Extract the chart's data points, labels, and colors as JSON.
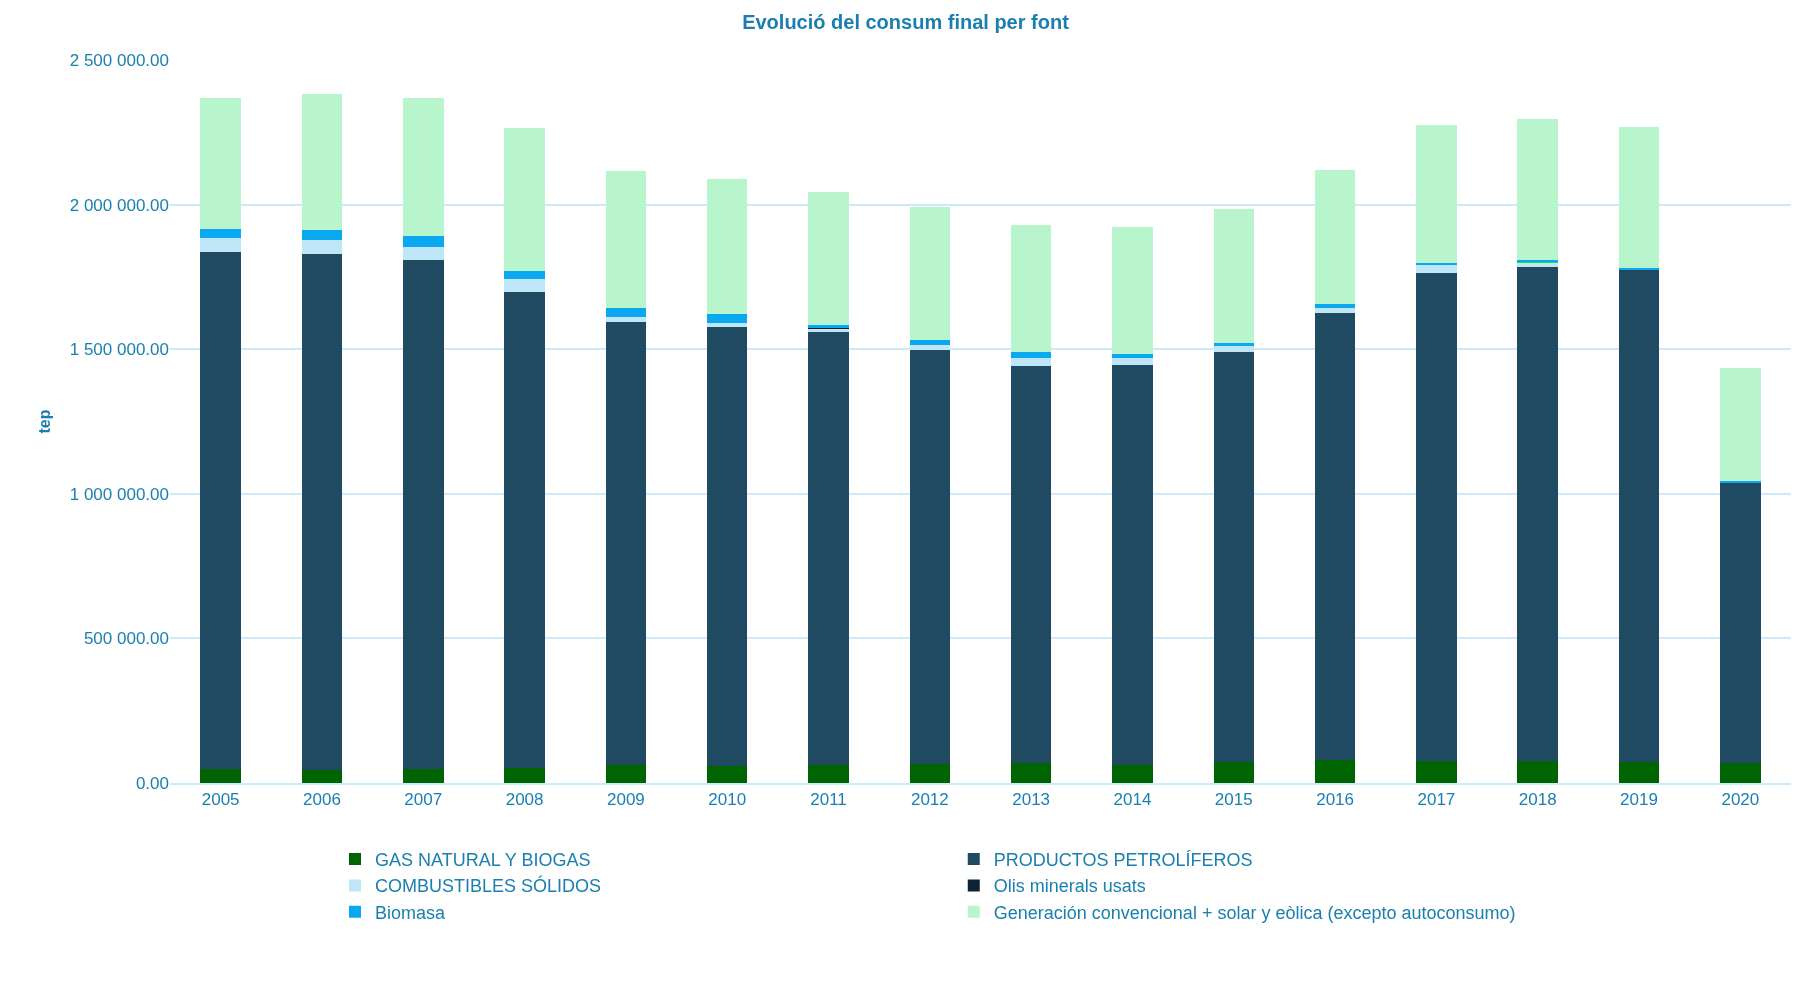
{
  "chart_data": {
    "type": "bar",
    "stacked": true,
    "title": "Evolució del consum final per font",
    "ylabel": "tep",
    "categories": [
      "2005",
      "2006",
      "2007",
      "2008",
      "2009",
      "2010",
      "2011",
      "2012",
      "2013",
      "2014",
      "2015",
      "2016",
      "2017",
      "2018",
      "2019",
      "2020"
    ],
    "series": [
      {
        "name": "GAS NATURAL Y BIOGAS",
        "color": "#006400",
        "values": [
          48000,
          44000,
          48000,
          52000,
          62000,
          59000,
          62000,
          66000,
          69000,
          62000,
          73000,
          81000,
          76000,
          76000,
          73000,
          69000
        ]
      },
      {
        "name": "PRODUCTOS PETROLÍFEROS",
        "color": "#1f4a62",
        "values": [
          1787000,
          1784000,
          1760000,
          1647000,
          1533000,
          1519000,
          1498000,
          1432000,
          1373000,
          1384000,
          1418000,
          1545000,
          1689000,
          1707000,
          1700000,
          968000
        ]
      },
      {
        "name": "COMBUSTIBLES SÓLIDOS",
        "color": "#bfe6f7",
        "values": [
          48000,
          48000,
          47000,
          43000,
          15000,
          11000,
          11000,
          18000,
          29000,
          25000,
          21000,
          18000,
          25000,
          17000,
          null,
          null
        ]
      },
      {
        "color": "#22dd44",
        "values": [
          null,
          null,
          null,
          null,
          null,
          null,
          null,
          null,
          null,
          null,
          null,
          null,
          null,
          4000,
          null,
          null
        ]
      },
      {
        "name": "Olis minerals usats",
        "color": "#0d2233",
        "values": [
          null,
          null,
          null,
          null,
          null,
          null,
          3000,
          null,
          null,
          null,
          null,
          null,
          null,
          null,
          null,
          null
        ]
      },
      {
        "name": "Biomasa",
        "color": "#0aa8f0",
        "values": [
          32000,
          36000,
          35000,
          30000,
          34000,
          34000,
          11000,
          16000,
          18000,
          13000,
          11000,
          14000,
          7000,
          6000,
          7000,
          7000
        ]
      },
      {
        "name": "Generación convencional + solar y eòlica (excepto autoconsumo)",
        "color": "#b8f5cc",
        "values": [
          455000,
          469000,
          477000,
          494000,
          472000,
          465000,
          458000,
          460000,
          442000,
          440000,
          462000,
          462000,
          479000,
          487000,
          489000,
          391000
        ]
      }
    ],
    "ylim": [
      0,
      2500000
    ],
    "yticks": [
      {
        "value": 0,
        "label": "0.00"
      },
      {
        "value": 500000,
        "label": "500 000.00"
      },
      {
        "value": 1000000,
        "label": "1 000 000.00"
      },
      {
        "value": 1500000,
        "label": "1 500 000.00"
      },
      {
        "value": 2000000,
        "label": "2 000 000.00"
      },
      {
        "value": 2500000,
        "label": "2 500 000.00"
      }
    ],
    "grid": "y",
    "legend": "bottom"
  }
}
